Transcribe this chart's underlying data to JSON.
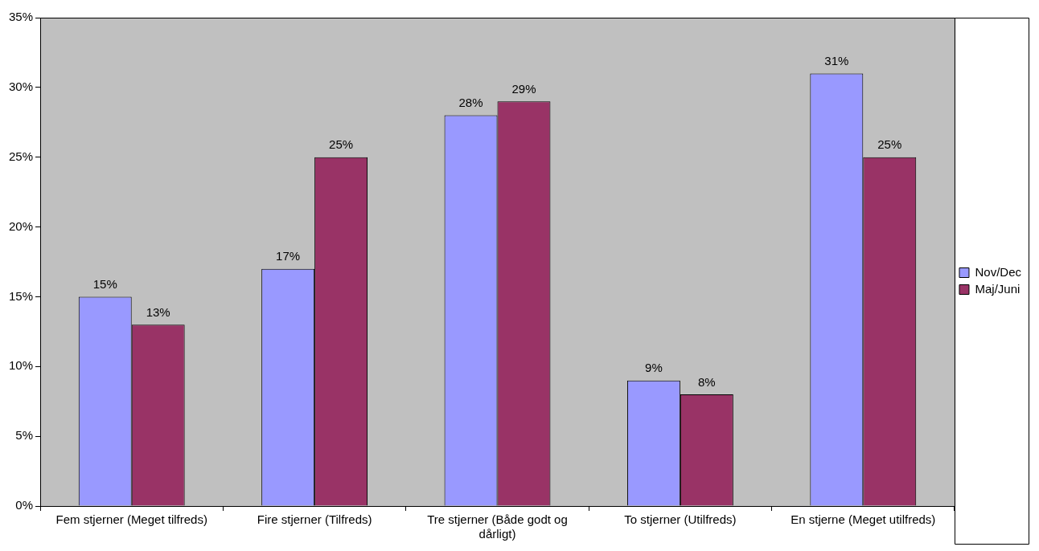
{
  "chart_data": {
    "type": "bar",
    "categories": [
      "Fem stjerner (Meget tilfreds)",
      "Fire stjerner (Tilfreds)",
      "Tre stjerner (Både godt og dårligt)",
      "To stjerner (Utilfreds)",
      "En stjerne (Meget utilfreds)"
    ],
    "series": [
      {
        "name": "Nov/Dec",
        "color": "#9999ff",
        "values": [
          15,
          17,
          28,
          9,
          31
        ],
        "value_labels": [
          "15%",
          "17%",
          "28%",
          "9%",
          "31%"
        ]
      },
      {
        "name": "Maj/Juni",
        "color": "#993366",
        "values": [
          13,
          25,
          29,
          8,
          25
        ],
        "value_labels": [
          "13%",
          "25%",
          "29%",
          "8%",
          "25%"
        ]
      }
    ],
    "ylim": [
      0,
      35
    ],
    "yticks": [
      {
        "value": 0,
        "label": "0%"
      },
      {
        "value": 5,
        "label": "5%"
      },
      {
        "value": 10,
        "label": "10%"
      },
      {
        "value": 15,
        "label": "15%"
      },
      {
        "value": 20,
        "label": "20%"
      },
      {
        "value": 25,
        "label": "25%"
      },
      {
        "value": 30,
        "label": "30%"
      },
      {
        "value": 35,
        "label": "35%"
      }
    ],
    "grid": false,
    "legend": "right"
  }
}
